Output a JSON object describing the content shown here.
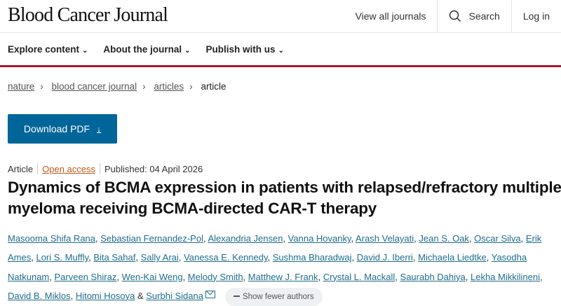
{
  "header": {
    "logo": "Blood Cancer Journal",
    "view_all": "View all journals",
    "search": "Search",
    "login": "Log in"
  },
  "nav": {
    "items": [
      {
        "label": "Explore content"
      },
      {
        "label": "About the journal"
      },
      {
        "label": "Publish with us"
      }
    ]
  },
  "breadcrumb": [
    {
      "label": "nature"
    },
    {
      "label": "blood cancer journal"
    },
    {
      "label": "articles"
    },
    {
      "label": "article"
    }
  ],
  "download": {
    "label": "Download PDF"
  },
  "meta": {
    "type": "Article",
    "access": "Open access",
    "published": "Published: 04 April 2026"
  },
  "title": "Dynamics of BCMA expression in patients with relapsed/refractory multiple myeloma receiving BCMA-directed CAR-T therapy",
  "authors": [
    "Masooma Shifa Rana",
    "Sebastian Fernandez-Pol",
    "Alexandria Jensen",
    "Vanna Hovanky",
    "Arash Velayati",
    "Jean S. Oak",
    "Oscar Silva",
    "Erik Ames",
    "Lori S. Muffly",
    "Bita Sahaf",
    "Sally Arai",
    "Vanessa E. Kennedy",
    "Sushma Bharadwaj",
    "David J. Iberri",
    "Michaela Liedtke",
    "Yasodha Natkunam",
    "Parveen Shiraz",
    "Wen-Kai Weng",
    "Melody Smith",
    "Matthew J. Frank",
    "Crystal L. Mackall",
    "Saurabh Dahiya",
    "Lekha Mikkilineni",
    "David B. Miklos",
    "Hitomi Hosoya",
    "Surbhi Sidana"
  ],
  "authors_joiner": "&",
  "show_fewer": "Show fewer authors",
  "colors": {
    "accent": "#a6192e",
    "button": "#006699",
    "link": "#1f6d8c",
    "open_access": "#c25a1a"
  }
}
